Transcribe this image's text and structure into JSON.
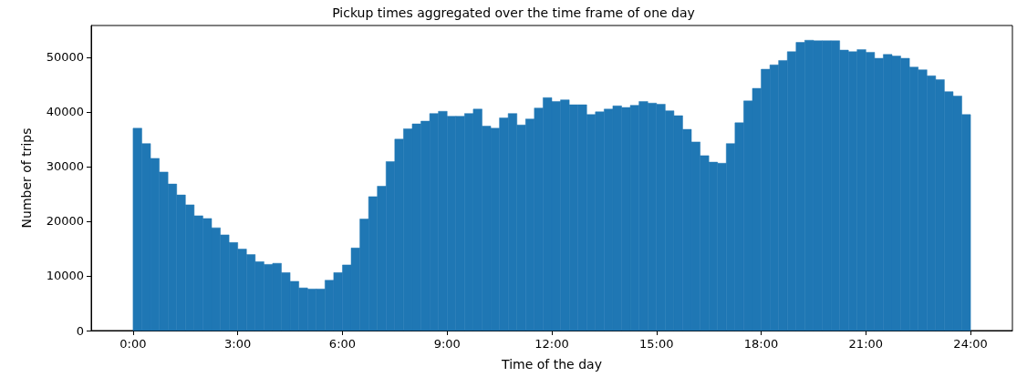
{
  "chart_data": {
    "type": "histogram",
    "title": "Pickup times aggregated over the time frame of one day",
    "xlabel": "Time of the day",
    "ylabel": "Number of trips",
    "color": "#1f77b4",
    "bins": [
      0,
      0.25,
      0.5,
      0.75,
      1,
      1.25,
      1.5,
      1.75,
      2,
      2.25,
      2.5,
      2.75,
      3,
      3.25,
      3.5,
      3.75,
      4,
      4.25,
      4.5,
      4.75,
      5,
      5.25,
      5.5,
      5.75,
      6,
      6.25,
      6.5,
      6.75,
      7,
      7.25,
      7.5,
      7.75,
      8,
      8.25,
      8.5,
      8.75,
      9,
      9.25,
      9.5,
      9.75,
      10,
      10.25,
      10.5,
      10.75,
      11,
      11.25,
      11.5,
      11.75,
      12,
      12.25,
      12.5,
      12.75,
      13,
      13.25,
      13.5,
      13.75,
      14,
      14.25,
      14.5,
      14.75,
      15,
      15.25,
      15.5,
      15.75,
      16,
      16.25,
      16.5,
      16.75,
      17,
      17.25,
      17.5,
      17.75,
      18,
      18.25,
      18.5,
      18.75,
      19,
      19.25,
      19.5,
      19.75,
      20,
      20.25,
      20.5,
      20.75,
      21,
      21.25,
      21.5,
      21.75,
      22,
      22.25,
      22.5,
      22.75,
      23,
      23.25,
      23.5,
      23.75,
      24
    ],
    "values": [
      37000,
      34200,
      31500,
      29000,
      26800,
      24800,
      23000,
      21000,
      20500,
      18800,
      17500,
      16100,
      14900,
      13900,
      12600,
      12100,
      12300,
      10600,
      9000,
      7800,
      7600,
      7600,
      9200,
      10600,
      12000,
      15100,
      20400,
      24500,
      26400,
      30900,
      35000,
      36900,
      37800,
      38300,
      39700,
      40100,
      39200,
      39200,
      39700,
      40500,
      37400,
      37000,
      38900,
      39700,
      37600,
      38700,
      40700,
      42600,
      41900,
      42200,
      41300,
      41300,
      39500,
      40000,
      40500,
      41100,
      40800,
      41200,
      41900,
      41600,
      41400,
      40200,
      39300,
      36800,
      34500,
      32000,
      30800,
      30600,
      34200,
      38000,
      42000,
      44300,
      47800,
      48600,
      49400,
      51000,
      52700,
      53100,
      53000,
      53000,
      53000,
      51300,
      51000,
      51400,
      50900,
      49800,
      50500,
      50200,
      49800,
      48200,
      47700,
      46600,
      45900,
      43700,
      42900,
      39500
    ],
    "xlim": [
      -1.2,
      25.2
    ],
    "xticks": [
      {
        "value": 0,
        "label": "0:00"
      },
      {
        "value": 3,
        "label": "3:00"
      },
      {
        "value": 6,
        "label": "6:00"
      },
      {
        "value": 9,
        "label": "9:00"
      },
      {
        "value": 12,
        "label": "12:00"
      },
      {
        "value": 15,
        "label": "15:00"
      },
      {
        "value": 18,
        "label": "18:00"
      },
      {
        "value": 21,
        "label": "21:00"
      },
      {
        "value": 24,
        "label": "24:00"
      }
    ],
    "ylim": [
      0,
      55800
    ],
    "yticks": [
      0,
      10000,
      20000,
      30000,
      40000,
      50000
    ],
    "grid": false
  }
}
